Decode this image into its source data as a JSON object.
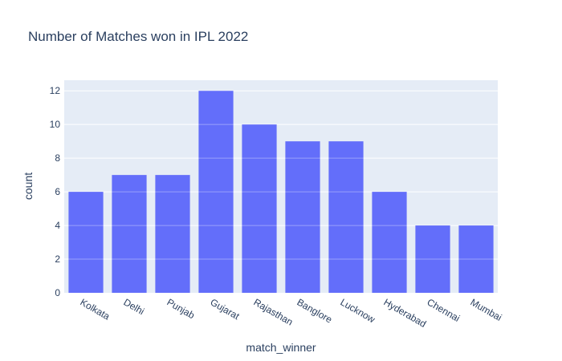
{
  "chart_data": {
    "type": "bar",
    "title": "Number of Matches won in IPL 2022",
    "xlabel": "match_winner",
    "ylabel": "count",
    "categories": [
      "Kolkata",
      "Delhi",
      "Punjab",
      "Gujarat",
      "Rajasthan",
      "Banglore",
      "Lucknow",
      "Hyderabad",
      "Chennai",
      "Mumbai"
    ],
    "values": [
      6,
      7,
      7,
      12,
      10,
      9,
      9,
      6,
      4,
      4
    ],
    "yticks": [
      0,
      2,
      4,
      6,
      8,
      10,
      12
    ],
    "ylim": [
      0,
      12.63
    ],
    "grid": true,
    "colors": {
      "bar": "#636efa",
      "plot_bg": "#e5ecf6",
      "grid": "#ffffff",
      "text": "#2a3f5f"
    }
  }
}
